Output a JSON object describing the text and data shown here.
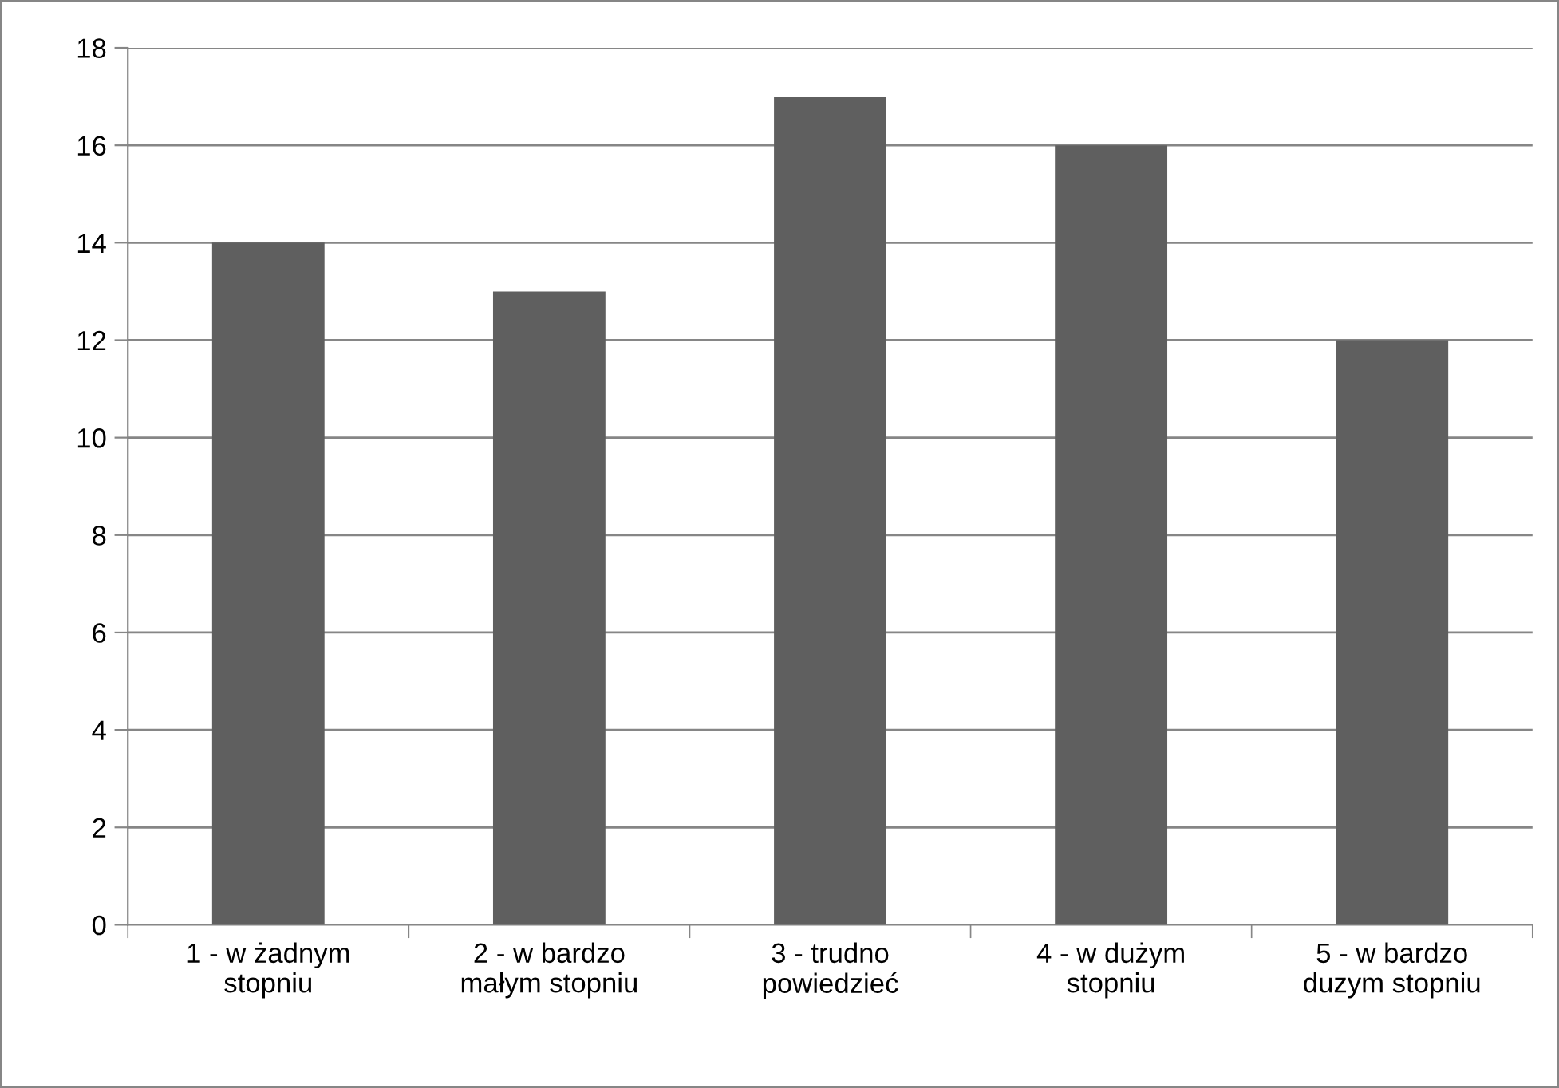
{
  "chart_data": {
    "type": "bar",
    "categories": [
      "1 - w żadnym\nstopniu",
      "2 - w bardzo\nmałym stopniu",
      "3 - trudno\npowiedzieć",
      "4 - w dużym\nstopniu",
      "5 - w bardzo\nduzym stopniu"
    ],
    "values": [
      14,
      13,
      17,
      16,
      12
    ],
    "color": "#5f5f5f",
    "ylim": [
      0,
      18
    ],
    "yticks": [
      0,
      2,
      4,
      6,
      8,
      10,
      12,
      14,
      16,
      18
    ],
    "grid": "y",
    "legend": false
  }
}
